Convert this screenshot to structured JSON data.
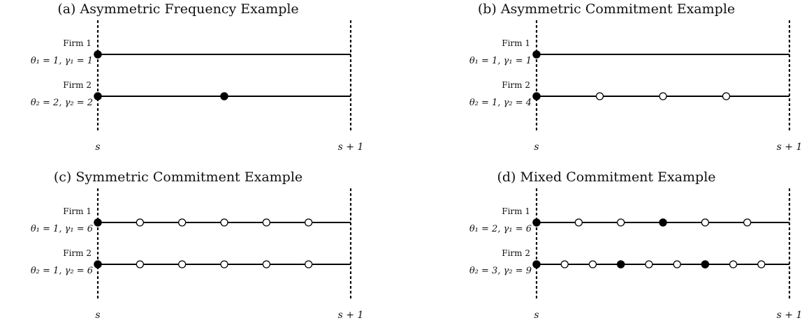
{
  "panels": [
    {
      "title": "(a) Asymmetric Frequency Example",
      "start_label": "s",
      "end_label": "s + 1",
      "firms": [
        {
          "name": "Firm 1",
          "params": "θ₁ = 1, γ₁ = 1",
          "points": [
            {
              "t": 0,
              "filled": true
            }
          ]
        },
        {
          "name": "Firm 2",
          "params": "θ₂ = 2, γ₂ = 2",
          "points": [
            {
              "t": 0,
              "filled": true
            },
            {
              "t": 0.5,
              "filled": true
            }
          ]
        }
      ]
    },
    {
      "title": "(b) Asymmetric Commitment Example",
      "start_label": "s",
      "end_label": "s + 1",
      "firms": [
        {
          "name": "Firm 1",
          "params": "θ₁ = 1, γ₁ = 1",
          "points": [
            {
              "t": 0,
              "filled": true
            }
          ]
        },
        {
          "name": "Firm 2",
          "params": "θ₂ = 1, γ₂ = 4",
          "points": [
            {
              "t": 0,
              "filled": true
            },
            {
              "t": 0.25,
              "filled": false
            },
            {
              "t": 0.5,
              "filled": false
            },
            {
              "t": 0.75,
              "filled": false
            }
          ]
        }
      ]
    },
    {
      "title": "(c) Symmetric Commitment Example",
      "start_label": "s",
      "end_label": "s + 1",
      "firms": [
        {
          "name": "Firm 1",
          "params": "θ₁ = 1, γ₁ = 6",
          "points": [
            {
              "t": 0,
              "filled": true
            },
            {
              "t": 0.1667,
              "filled": false
            },
            {
              "t": 0.3333,
              "filled": false
            },
            {
              "t": 0.5,
              "filled": false
            },
            {
              "t": 0.6667,
              "filled": false
            },
            {
              "t": 0.8333,
              "filled": false
            }
          ]
        },
        {
          "name": "Firm 2",
          "params": "θ₂ = 1, γ₂ = 6",
          "points": [
            {
              "t": 0,
              "filled": true
            },
            {
              "t": 0.1667,
              "filled": false
            },
            {
              "t": 0.3333,
              "filled": false
            },
            {
              "t": 0.5,
              "filled": false
            },
            {
              "t": 0.6667,
              "filled": false
            },
            {
              "t": 0.8333,
              "filled": false
            }
          ]
        }
      ]
    },
    {
      "title": "(d) Mixed Commitment Example",
      "start_label": "s",
      "end_label": "s + 1",
      "firms": [
        {
          "name": "Firm 1",
          "params": "θ₁ = 2, γ₁ = 6",
          "points": [
            {
              "t": 0,
              "filled": true
            },
            {
              "t": 0.1667,
              "filled": false
            },
            {
              "t": 0.3333,
              "filled": false
            },
            {
              "t": 0.5,
              "filled": true
            },
            {
              "t": 0.6667,
              "filled": false
            },
            {
              "t": 0.8333,
              "filled": false
            }
          ]
        },
        {
          "name": "Firm 2",
          "params": "θ₂ = 3, γ₂ = 9",
          "points": [
            {
              "t": 0,
              "filled": true
            },
            {
              "t": 0.1111,
              "filled": false
            },
            {
              "t": 0.2222,
              "filled": false
            },
            {
              "t": 0.3333,
              "filled": true
            },
            {
              "t": 0.4444,
              "filled": false
            },
            {
              "t": 0.5556,
              "filled": false
            },
            {
              "t": 0.6667,
              "filled": true
            },
            {
              "t": 0.7778,
              "filled": false
            },
            {
              "t": 0.8889,
              "filled": false
            }
          ]
        }
      ]
    }
  ]
}
